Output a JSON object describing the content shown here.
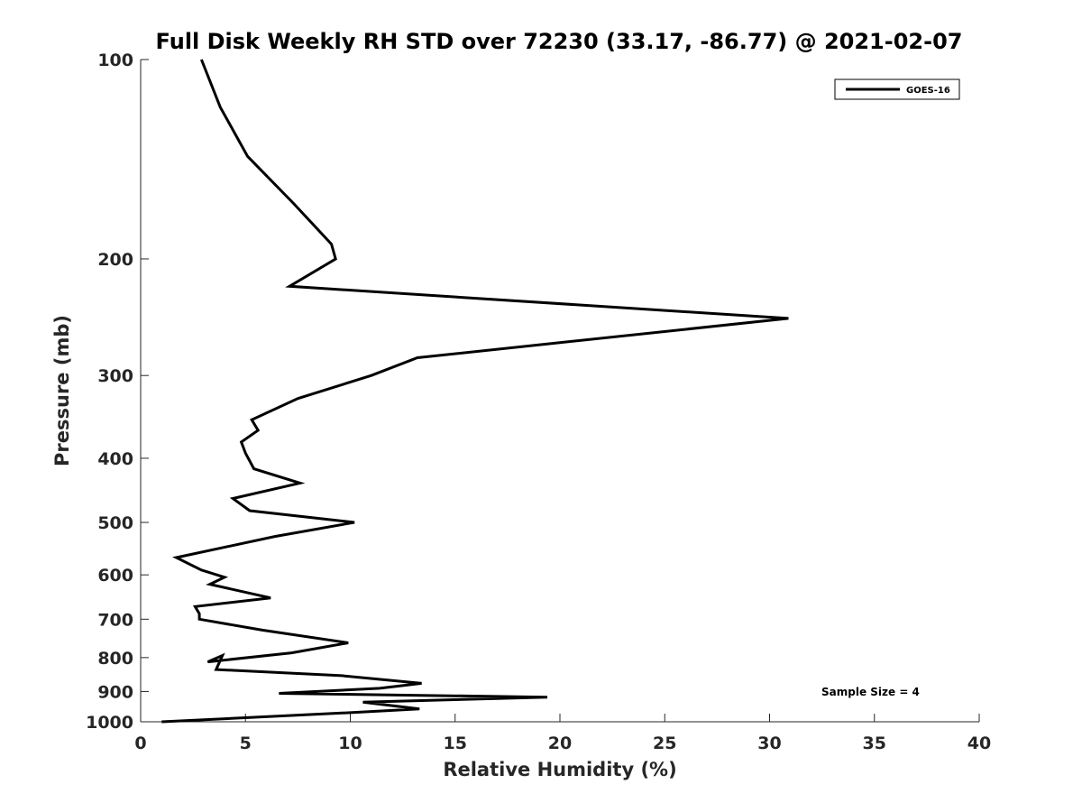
{
  "chart_data": {
    "type": "line",
    "title": "Full Disk Weekly RH STD over 72230 (33.17, -86.77) @ 2021-02-07",
    "xlabel": "Relative Humidity (%)",
    "ylabel": "Pressure (mb)",
    "xlim": [
      0,
      40
    ],
    "ylim": [
      100,
      1000
    ],
    "yscale": "log",
    "y_reversed": true,
    "grid": false,
    "legend_position": "top-right",
    "xticks": [
      0,
      5,
      10,
      15,
      20,
      25,
      30,
      35,
      40
    ],
    "xtick_labels": [
      "0",
      "5",
      "10",
      "15",
      "20",
      "25",
      "30",
      "35",
      "40"
    ],
    "yticks": [
      100,
      200,
      300,
      400,
      500,
      600,
      700,
      800,
      900,
      1000
    ],
    "ytick_labels": [
      "100",
      "200",
      "300",
      "400",
      "500",
      "600",
      "700",
      "800",
      "900",
      "1000"
    ],
    "annotation": "Sample Size = 4",
    "series": [
      {
        "name": "GOES-16",
        "color": "#000000",
        "x": [
          2.9,
          3.8,
          5.1,
          7.3,
          9.1,
          9.3,
          7.1,
          30.9,
          13.2,
          11.0,
          7.5,
          5.3,
          5.6,
          4.8,
          5.0,
          5.4,
          7.6,
          4.4,
          5.2,
          10.2,
          6.4,
          1.7,
          2.9,
          4.0,
          3.3,
          6.2,
          2.6,
          2.8,
          2.8,
          5.8,
          9.9,
          7.2,
          3.2,
          3.9,
          3.6,
          9.6,
          13.4,
          11.4,
          6.6,
          19.4,
          10.6,
          13.3,
          10.5,
          1.0
        ],
        "y": [
          100,
          118,
          140,
          165,
          190,
          200,
          220,
          246,
          282,
          300,
          325,
          350,
          363,
          378,
          393,
          415,
          436,
          460,
          480,
          500,
          525,
          565,
          590,
          605,
          620,
          650,
          670,
          687,
          700,
          727,
          760,
          787,
          812,
          794,
          834,
          852,
          875,
          890,
          906,
          918,
          934,
          956,
          967,
          1000
        ]
      }
    ]
  }
}
